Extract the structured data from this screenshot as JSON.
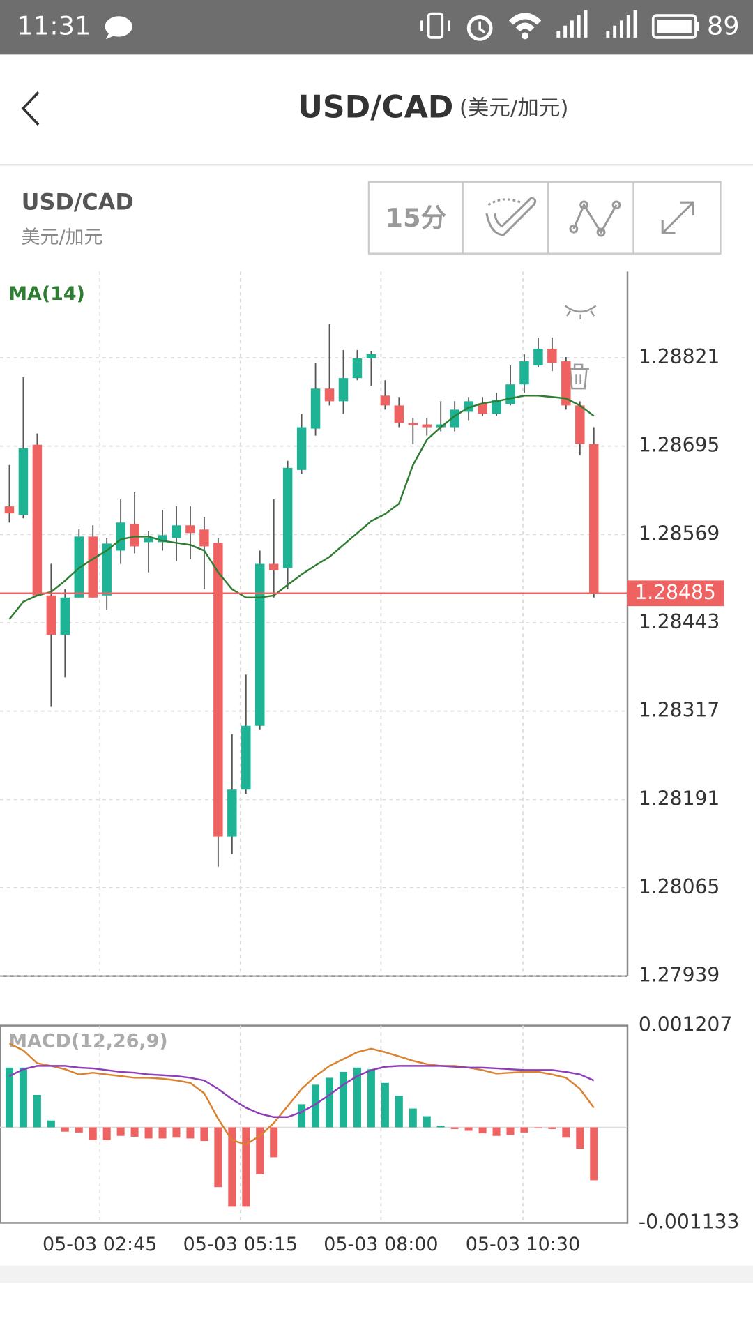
{
  "status_bar": {
    "time": "11:31",
    "battery": "89"
  },
  "header": {
    "title": "USD/CAD",
    "subtitle": "(美元/加元)"
  },
  "instrument": {
    "symbol": "USD/CAD",
    "name": "美元/加元"
  },
  "toolbar": {
    "interval": "15分"
  },
  "chart_data": [
    {
      "type": "candlestick",
      "indicator": "MA(14)",
      "up_color": "#1db394",
      "down_color": "#ef6262",
      "grid": true,
      "open": [
        1.28609,
        1.28597,
        1.28697,
        1.28482,
        1.28426,
        1.28479,
        1.28566,
        1.28482,
        1.28546,
        1.28584,
        1.28558,
        1.28558,
        1.28564,
        1.28582,
        1.28576,
        1.28557,
        1.28138,
        1.28205,
        1.28296,
        1.28527,
        1.28521,
        1.28661,
        1.2872,
        1.28777,
        1.28759,
        1.28792,
        1.2882,
        1.28767,
        1.28753,
        1.28728,
        1.28726,
        1.28722,
        1.28722,
        1.28744,
        1.28756,
        1.28741,
        1.28755,
        1.28783,
        1.2881,
        1.28834,
        1.28816,
        1.28753,
        1.28698
      ],
      "high": [
        1.28668,
        1.28793,
        1.28713,
        1.28527,
        1.28491,
        1.28576,
        1.28582,
        1.28564,
        1.28619,
        1.28629,
        1.28574,
        1.28604,
        1.28609,
        1.28609,
        1.28594,
        1.28564,
        1.28284,
        1.28369,
        1.28546,
        1.28619,
        1.28674,
        1.28741,
        1.28814,
        1.28869,
        1.28832,
        1.28832,
        1.2883,
        1.28789,
        1.28765,
        1.28735,
        1.28735,
        1.28759,
        1.28759,
        1.28765,
        1.28765,
        1.28771,
        1.2881,
        1.28826,
        1.2885,
        1.2885,
        1.28822,
        1.28759,
        1.28722
      ],
      "low": [
        1.28586,
        1.28592,
        1.28482,
        1.28323,
        1.28365,
        1.28479,
        1.28479,
        1.28461,
        1.28527,
        1.28542,
        1.28515,
        1.28546,
        1.28531,
        1.28534,
        1.28491,
        1.28095,
        1.28113,
        1.28199,
        1.2829,
        1.28479,
        1.28491,
        1.28655,
        1.2871,
        1.28753,
        1.28741,
        1.28789,
        1.28781,
        1.28747,
        1.28722,
        1.28698,
        1.2871,
        1.28716,
        1.28716,
        1.28732,
        1.28738,
        1.28738,
        1.28753,
        1.28771,
        1.28808,
        1.28802,
        1.28747,
        1.28682,
        1.28479
      ],
      "close": [
        1.28599,
        1.28692,
        1.28482,
        1.28426,
        1.28479,
        1.28566,
        1.28479,
        1.28556,
        1.28586,
        1.28552,
        1.28564,
        1.28568,
        1.28582,
        1.28571,
        1.28552,
        1.28138,
        1.28205,
        1.28296,
        1.28527,
        1.28518,
        1.28664,
        1.28722,
        1.28777,
        1.28759,
        1.28792,
        1.2882,
        1.28826,
        1.28753,
        1.28728,
        1.28725,
        1.28722,
        1.28726,
        1.28747,
        1.28759,
        1.28741,
        1.28761,
        1.28783,
        1.28816,
        1.28834,
        1.28814,
        1.28753,
        1.28698,
        1.28485
      ],
      "ma": {
        "color": "#2e7d32",
        "values": [
          1.28448,
          1.28473,
          1.28482,
          1.28487,
          1.28503,
          1.28521,
          1.28534,
          1.28546,
          1.28562,
          1.28566,
          1.28566,
          1.2856,
          1.28557,
          1.28554,
          1.28546,
          1.28515,
          1.28491,
          1.28479,
          1.28479,
          1.28482,
          1.28497,
          1.28512,
          1.28525,
          1.28537,
          1.28554,
          1.28571,
          1.28588,
          1.28598,
          1.28613,
          1.28668,
          1.28704,
          1.28722,
          1.28738,
          1.2875,
          1.28756,
          1.28759,
          1.28763,
          1.28767,
          1.28767,
          1.28765,
          1.28763,
          1.28753,
          1.28738
        ]
      },
      "last_price": 1.28485,
      "last_price_color": "#ef6262",
      "ylim": [
        1.27939,
        1.28944
      ],
      "yticks": [
        1.27939,
        1.28065,
        1.28191,
        1.28317,
        1.28443,
        1.28569,
        1.28695,
        1.28821
      ]
    },
    {
      "type": "macd",
      "title": "MACD(12,26,9)",
      "up_color": "#1db394",
      "down_color": "#ef6262",
      "grid": true,
      "histogram": [
        0.000709,
        0.000709,
        0.000385,
        8.1e-05,
        -5.1e-05,
        -6.1e-05,
        -0.000152,
        -0.000152,
        -0.000101,
        -0.000111,
        -0.000132,
        -0.000132,
        -0.000122,
        -0.000132,
        -0.000162,
        -0.000709,
        -0.000942,
        -0.000942,
        -0.000557,
        -0.000355,
        0,
        0.000274,
        0.000506,
        0.000588,
        0.000658,
        0.000709,
        0.000689,
        0.000527,
        0.000375,
        0.000223,
        0.000132,
        2e-05,
        -2e-05,
        -4.1e-05,
        -7.1e-05,
        -0.000101,
        -9.1e-05,
        -6.1e-05,
        -1e-05,
        -2e-05,
        -0.000122,
        -0.000253,
        -0.000628
      ],
      "series": [
        {
          "color": "#d98230",
          "values": [
            0.000993,
            0.000912,
            0.00076,
            0.000729,
            0.000689,
            0.000628,
            0.000648,
            0.000628,
            0.000608,
            0.000588,
            0.000588,
            0.000577,
            0.000557,
            0.000527,
            0.000405,
            0.000101,
            -0.000152,
            -0.000203,
            -0.000101,
            5.1e-05,
            0.000253,
            0.000456,
            0.000608,
            0.000729,
            0.00081,
            0.000891,
            0.000932,
            0.000891,
            0.000841,
            0.00079,
            0.00075,
            0.000729,
            0.000729,
            0.000709,
            0.000679,
            0.000638,
            0.000648,
            0.000658,
            0.000658,
            0.000628,
            0.000588,
            0.000456,
            0.000233
          ]
        },
        {
          "color": "#8e3db8",
          "values": [
            0.000608,
            0.000689,
            0.000729,
            0.000729,
            0.000729,
            0.000709,
            0.000699,
            0.000679,
            0.000658,
            0.000648,
            0.000628,
            0.000618,
            0.000608,
            0.000588,
            0.000557,
            0.000456,
            0.000334,
            0.000233,
            0.000162,
            0.000122,
            0.000122,
            0.000182,
            0.000274,
            0.000385,
            0.000507,
            0.000608,
            0.000679,
            0.000719,
            0.000729,
            0.000729,
            0.000729,
            0.000729,
            0.000719,
            0.000709,
            0.000709,
            0.000699,
            0.000689,
            0.000679,
            0.000679,
            0.000679,
            0.000658,
            0.000628,
            0.000557
          ]
        }
      ],
      "ylim": [
        -0.001133,
        0.001207
      ],
      "yticks": [
        0.001207,
        -0.001133
      ],
      "xticks": [
        {
          "value": 6.5,
          "label": "05-03 02:45"
        },
        {
          "value": 16.6,
          "label": "05-03 05:15"
        },
        {
          "value": 26.7,
          "label": "05-03 08:00"
        },
        {
          "value": 36.9,
          "label": "05-03 10:30"
        }
      ]
    }
  ]
}
